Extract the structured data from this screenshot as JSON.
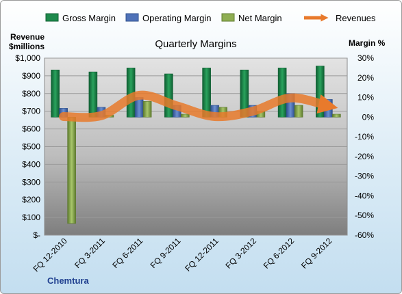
{
  "chart_data": {
    "type": "bar",
    "title": "Quarterly Margins",
    "footer": "Chemtura",
    "left_axis_title_line1": "Revenue",
    "left_axis_title_line2": "$millions",
    "right_axis_title": "Margin %",
    "categories": [
      "FQ 12-2010",
      "FQ 3-2011",
      "FQ 6-2011",
      "FQ 9-2011",
      "FQ 12-2011",
      "FQ 3-2012",
      "FQ 6-2012",
      "FQ 9-2012"
    ],
    "left_ylim": [
      0,
      1000
    ],
    "left_ticks": [
      "$-",
      "$100",
      "$200",
      "$300",
      "$400",
      "$500",
      "$600",
      "$700",
      "$800",
      "$900",
      "$1,000"
    ],
    "right_ylim": [
      -60,
      30
    ],
    "right_ticks": [
      "-60%",
      "-50%",
      "-40%",
      "-30%",
      "-20%",
      "-10%",
      "0%",
      "10%",
      "20%",
      "30%"
    ],
    "grid": true,
    "legend_position": "top",
    "series": [
      {
        "name": "Gross Margin",
        "axis": "right",
        "kind": "bar",
        "color": "#1e8a4c",
        "values": [
          24,
          23,
          25,
          22,
          25,
          24,
          25,
          26
        ]
      },
      {
        "name": "Operating Margin",
        "axis": "right",
        "kind": "bar",
        "color": "#4f72b8",
        "values": [
          4.5,
          5,
          10,
          6,
          6,
          6,
          12,
          9
        ]
      },
      {
        "name": "Net Margin",
        "axis": "right",
        "kind": "bar",
        "color": "#8fae52",
        "values": [
          -54,
          1,
          8,
          1.5,
          5,
          3,
          6,
          1.5
        ]
      },
      {
        "name": "Revenues",
        "axis": "left",
        "kind": "line",
        "color": "#e87a2c",
        "values": [
          670,
          675,
          790,
          730,
          670,
          700,
          775,
          730
        ]
      }
    ]
  }
}
